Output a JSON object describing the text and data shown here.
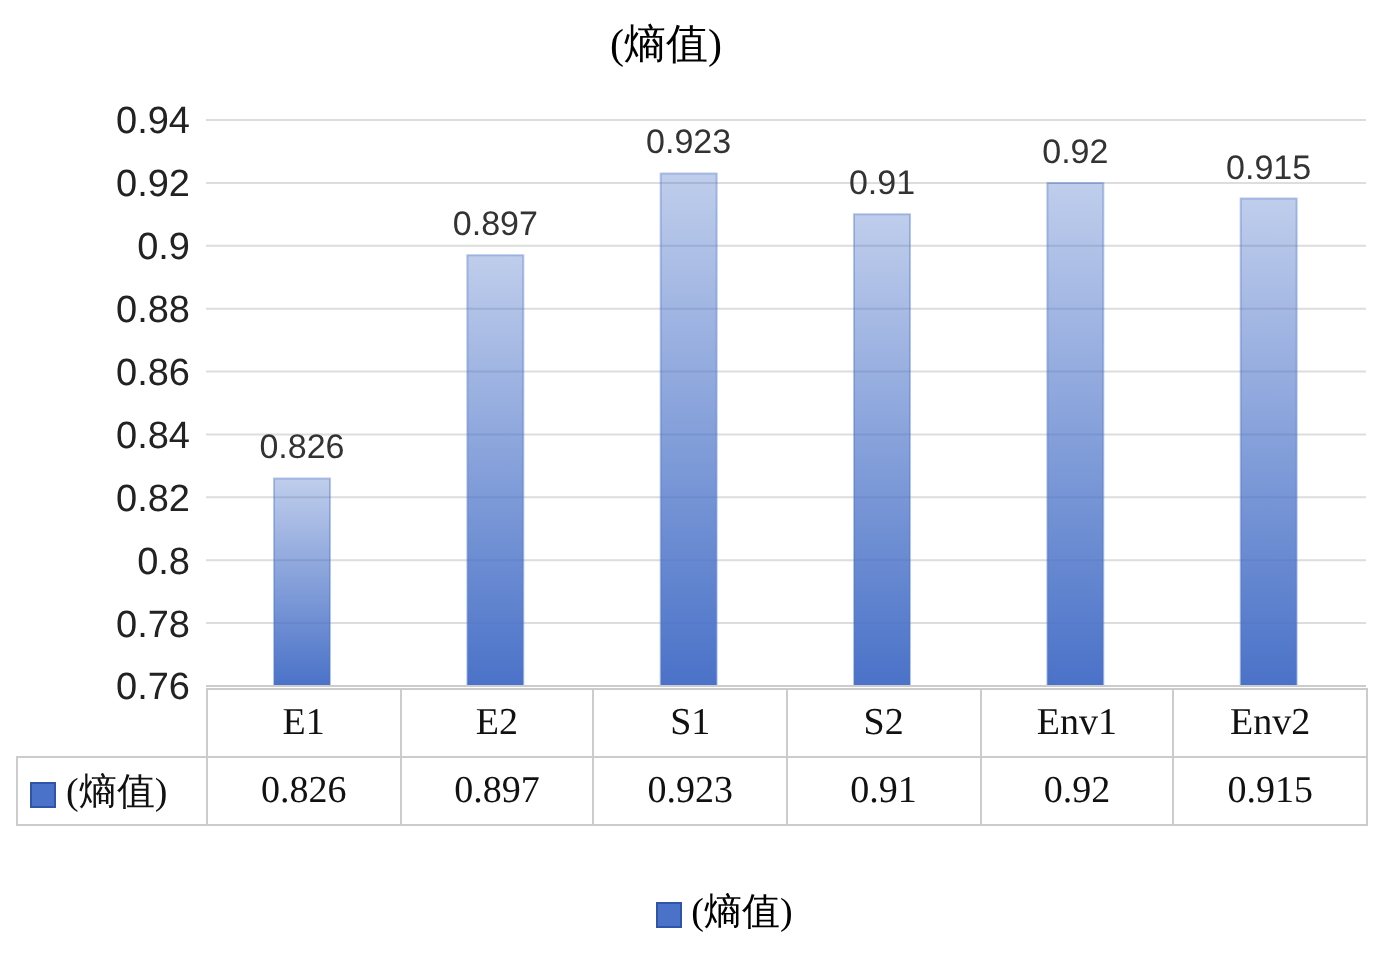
{
  "chart_data": {
    "type": "bar",
    "title": "(熵值)",
    "categories": [
      "E1",
      "E2",
      "S1",
      "S2",
      "Env1",
      "Env2"
    ],
    "series": [
      {
        "name": "(熵值)",
        "color": "#4a72c8",
        "values": [
          0.826,
          0.897,
          0.923,
          0.91,
          0.92,
          0.915
        ],
        "value_labels": [
          "0.826",
          "0.897",
          "0.923",
          "0.91",
          "0.92",
          "0.915"
        ]
      }
    ],
    "ylim": [
      0.76,
      0.94
    ],
    "yticks": [
      0.76,
      0.78,
      0.8,
      0.82,
      0.84,
      0.86,
      0.88,
      0.9,
      0.92,
      0.94
    ],
    "annotations": [
      "0.826",
      "0.897",
      "0.923",
      "0.91",
      "0.92",
      "0.915"
    ],
    "grid": "y",
    "data_labels": true,
    "legend": "bottom"
  }
}
